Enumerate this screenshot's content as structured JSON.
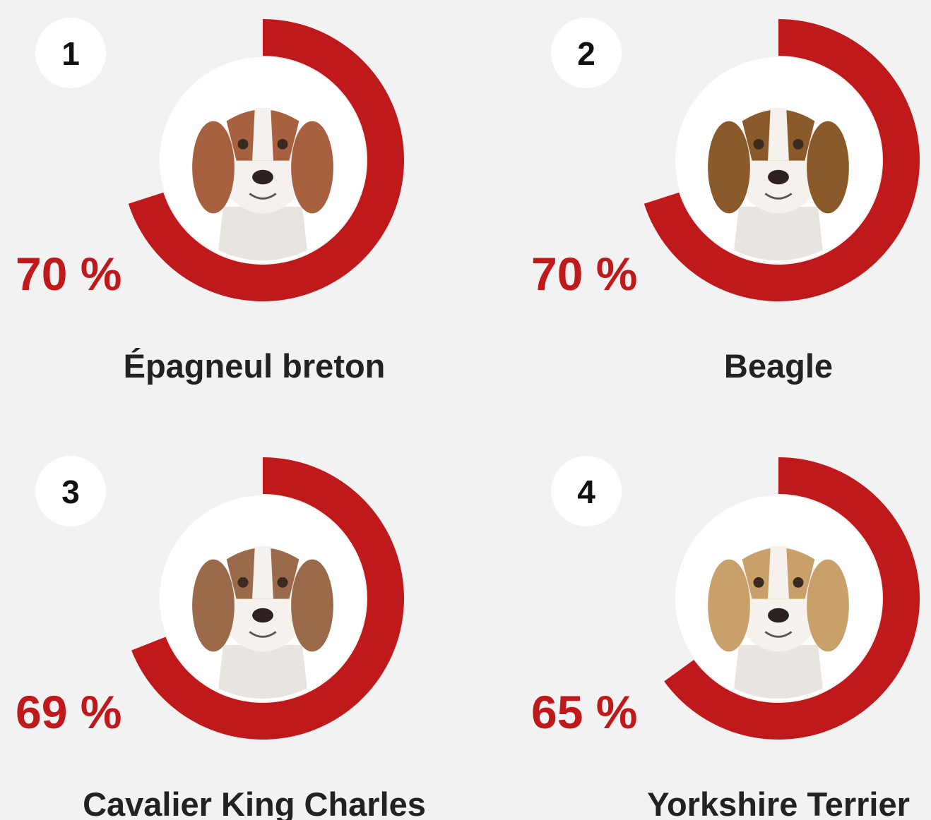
{
  "chart_data": {
    "type": "radial",
    "categories": [
      "Épagneul breton",
      "Beagle",
      "Cavalier King Charles",
      "Yorkshire Terrier"
    ],
    "ranks": [
      1,
      2,
      3,
      4
    ],
    "values": [
      70,
      70,
      69,
      65
    ],
    "value_labels": [
      "70 %",
      "70 %",
      "69 %",
      "65 %"
    ],
    "ylim": [
      0,
      100
    ],
    "color": "#c0191b"
  }
}
